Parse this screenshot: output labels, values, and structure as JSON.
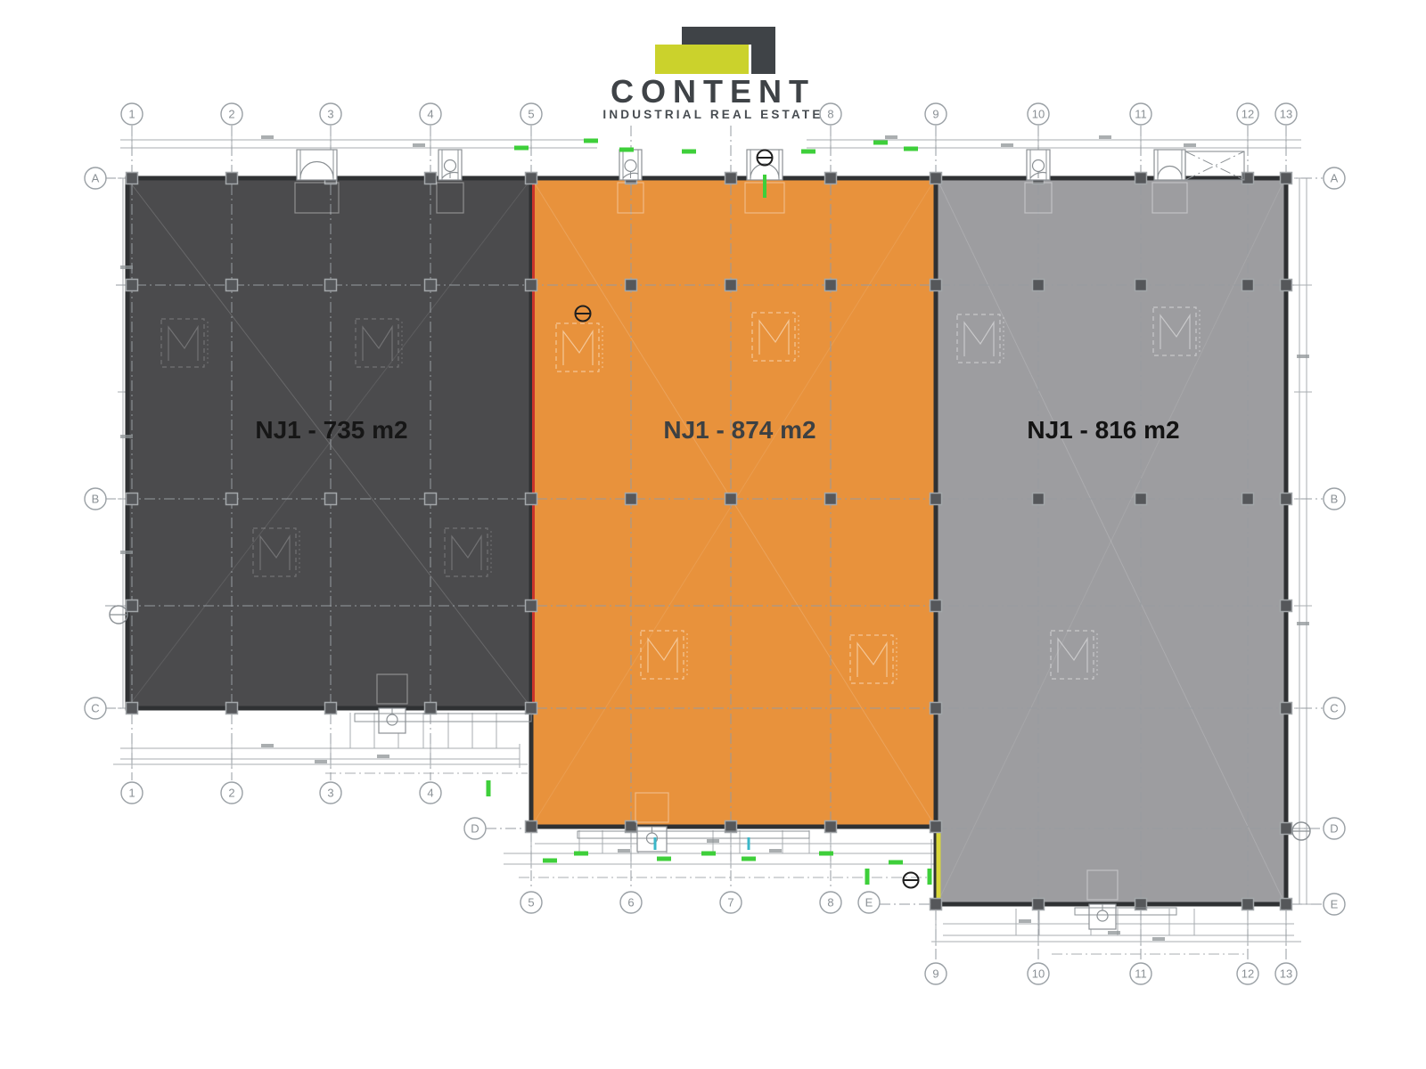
{
  "brand": {
    "name": "CONTENT",
    "tagline": "INDUSTRIAL REAL ESTATE",
    "logo_dark": "#3f4347",
    "logo_green": "#cbd22c"
  },
  "plan": {
    "units": [
      {
        "id": "NJ1-735",
        "label": "NJ1 - 735 m2",
        "area_m2": 735,
        "fill": "#4b4b4d",
        "label_color": "#161616"
      },
      {
        "id": "NJ1-874",
        "label": "NJ1 - 874 m2",
        "area_m2": 874,
        "fill": "#e8923c",
        "label_color": "#3c4043"
      },
      {
        "id": "NJ1-816",
        "label": "NJ1 - 816 m2",
        "area_m2": 816,
        "fill": "#9d9da0",
        "label_color": "#131313"
      }
    ],
    "grid_columns": [
      "1",
      "2",
      "3",
      "4",
      "5",
      "6",
      "7",
      "8",
      "9",
      "10",
      "11",
      "12",
      "13"
    ],
    "grid_rows": [
      "A",
      "B",
      "C",
      "D",
      "E"
    ],
    "colors": {
      "wall": "#2f3133",
      "line": "#a9aeb2",
      "grid": "#969ba0",
      "circle_stroke": "#9aa0a5",
      "circle_text": "#8a9095",
      "dim_green": "#3ecf3a",
      "dim_cyan": "#3ab7c9",
      "divider_red": "#c9342c",
      "divider_yellow": "#d9d73a",
      "column_fill": "#55575a",
      "column_stroke": "#a3a7aa"
    }
  }
}
